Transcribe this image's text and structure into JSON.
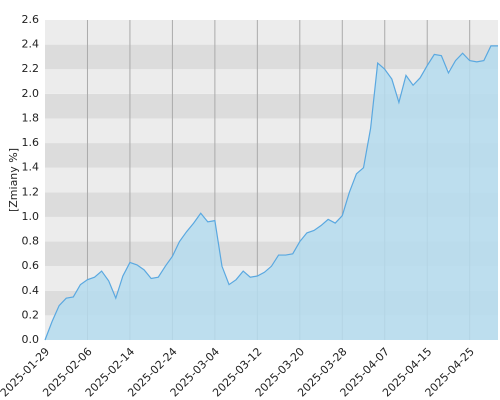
{
  "chart_data": {
    "type": "area",
    "y_label": "[Zmiany %]",
    "categories": [
      "2025-01-29",
      null,
      null,
      null,
      null,
      null,
      "2025-02-06",
      null,
      null,
      null,
      null,
      null,
      "2025-02-14",
      null,
      null,
      null,
      null,
      null,
      "2025-02-24",
      null,
      null,
      null,
      null,
      null,
      "2025-03-04",
      null,
      null,
      null,
      null,
      null,
      "2025-03-12",
      null,
      null,
      null,
      null,
      null,
      "2025-03-20",
      null,
      null,
      null,
      null,
      null,
      "2025-03-28",
      null,
      null,
      null,
      null,
      null,
      "2025-04-07",
      null,
      null,
      null,
      null,
      null,
      "2025-04-15",
      null,
      null,
      null,
      null,
      null,
      "2025-04-25",
      null,
      null,
      null,
      null
    ],
    "values": [
      0.0,
      0.15,
      0.28,
      0.34,
      0.35,
      0.45,
      0.49,
      0.51,
      0.56,
      0.48,
      0.34,
      0.52,
      0.63,
      0.61,
      0.57,
      0.5,
      0.51,
      0.6,
      0.68,
      0.8,
      0.88,
      0.95,
      1.03,
      0.96,
      0.97,
      0.6,
      0.45,
      0.49,
      0.56,
      0.51,
      0.52,
      0.55,
      0.6,
      0.69,
      0.69,
      0.7,
      0.8,
      0.87,
      0.89,
      0.93,
      0.98,
      0.95,
      1.01,
      1.2,
      1.35,
      1.4,
      1.72,
      2.25,
      2.2,
      2.12,
      1.93,
      2.15,
      2.07,
      2.13,
      2.23,
      2.32,
      2.31,
      2.17,
      2.27,
      2.33,
      2.27,
      2.26,
      2.27,
      2.39,
      2.39
    ],
    "color": "#5aa8e0",
    "fill_color": "#b5dcee",
    "ylim": [
      0,
      2.6
    ],
    "yticks": [
      {
        "value": 0,
        "label": "0.0"
      },
      0.2,
      0.4,
      0.6,
      0.8,
      {
        "value": 1,
        "label": "1.0"
      },
      1.2,
      1.4,
      1.6,
      1.8,
      {
        "value": 2,
        "label": "2.0"
      },
      2.2,
      2.4,
      2.6
    ],
    "grid": true
  }
}
